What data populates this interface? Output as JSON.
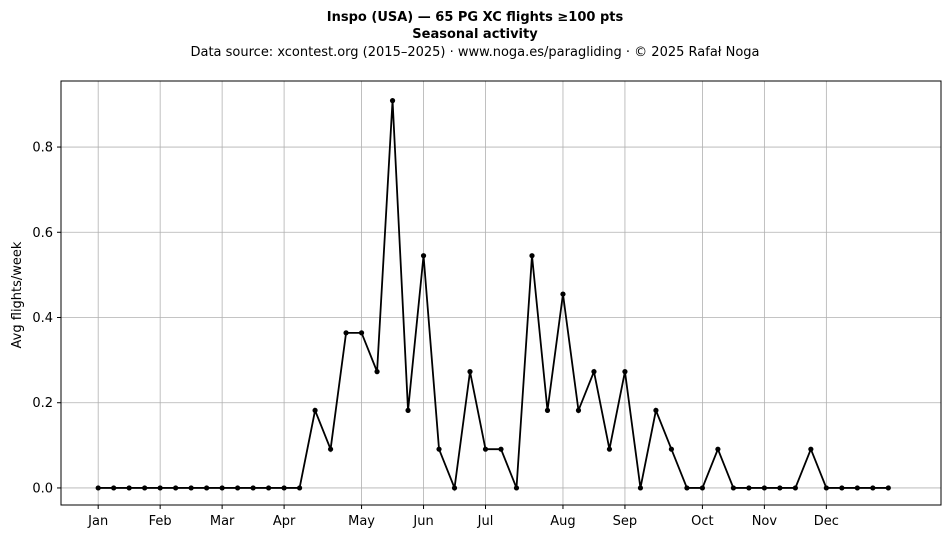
{
  "chart_data": {
    "type": "line",
    "title_line1": "Inspo (USA)  —  65 PG XC flights ≥100 pts",
    "title_line2": "Seasonal activity",
    "subtitle": "Data source: xcontest.org (2015–2025)  ·  www.noga.es/paragliding  ·  © 2025 Rafał Noga",
    "xlabel": "",
    "ylabel": "Avg flights/week",
    "ylim": [
      -0.04,
      0.955
    ],
    "xlim": [
      -2.4,
      54.4
    ],
    "grid": true,
    "month_ticks": [
      {
        "label": "Jan",
        "week": 0
      },
      {
        "label": "Feb",
        "week": 4
      },
      {
        "label": "Mar",
        "week": 8
      },
      {
        "label": "Apr",
        "week": 12
      },
      {
        "label": "May",
        "week": 17
      },
      {
        "label": "Jun",
        "week": 21
      },
      {
        "label": "Jul",
        "week": 25
      },
      {
        "label": "Aug",
        "week": 30
      },
      {
        "label": "Sep",
        "week": 34
      },
      {
        "label": "Oct",
        "week": 39
      },
      {
        "label": "Nov",
        "week": 43
      },
      {
        "label": "Dec",
        "week": 47
      }
    ],
    "y_ticks": [
      0.0,
      0.2,
      0.4,
      0.6,
      0.8
    ],
    "y_tick_labels": [
      "0.0",
      "0.2",
      "0.4",
      "0.6",
      "0.8"
    ],
    "series": [
      {
        "color": "#000000",
        "values": [
          0,
          0,
          0,
          0,
          0,
          0,
          0,
          0,
          0,
          0,
          0,
          0,
          0,
          0,
          0.182,
          0.091,
          0.364,
          0.364,
          0.273,
          0.909,
          0.182,
          0.545,
          0.091,
          0,
          0.273,
          0.091,
          0.091,
          0,
          0.545,
          0.182,
          0.455,
          0.182,
          0.273,
          0.091,
          0.273,
          0,
          0.182,
          0.091,
          0,
          0,
          0.091,
          0,
          0,
          0,
          0,
          0,
          0.091,
          0,
          0,
          0,
          0,
          0
        ]
      }
    ]
  }
}
